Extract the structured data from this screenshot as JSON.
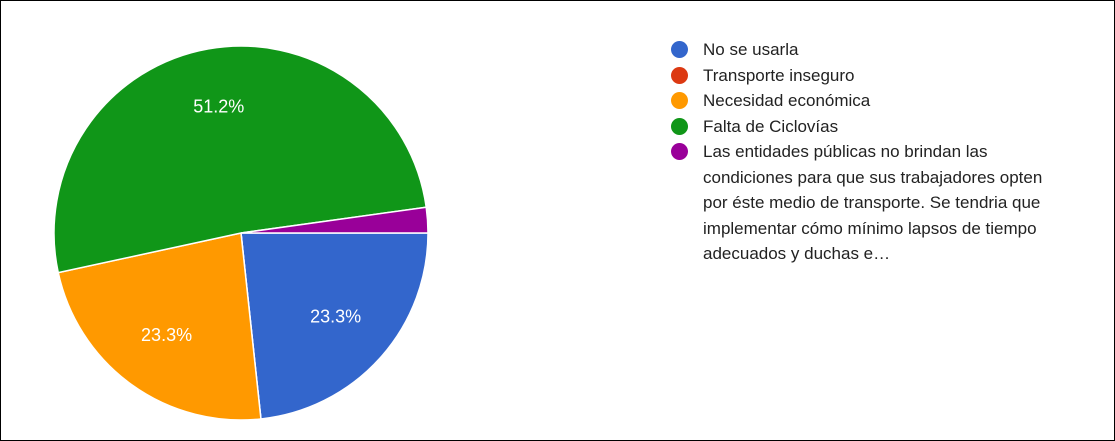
{
  "chart_data": {
    "type": "pie",
    "categories": [
      "No se usarla",
      "Transporte inseguro",
      "Necesidad económica",
      "Falta de Ciclovías",
      "Las entidades públicas no brindan las condiciones para que sus trabajadores opten por éste medio de transporte. Se tendria que implementar cómo mínimo lapsos de tiempo adecuados y duchas e…"
    ],
    "values": [
      23.3,
      0,
      23.3,
      51.2,
      2.2
    ],
    "value_labels": [
      "23.3%",
      null,
      "23.3%",
      "51.2%",
      null
    ],
    "colors": [
      "#3366cc",
      "#dc3912",
      "#ff9900",
      "#109618",
      "#990099"
    ],
    "legend": "right"
  }
}
